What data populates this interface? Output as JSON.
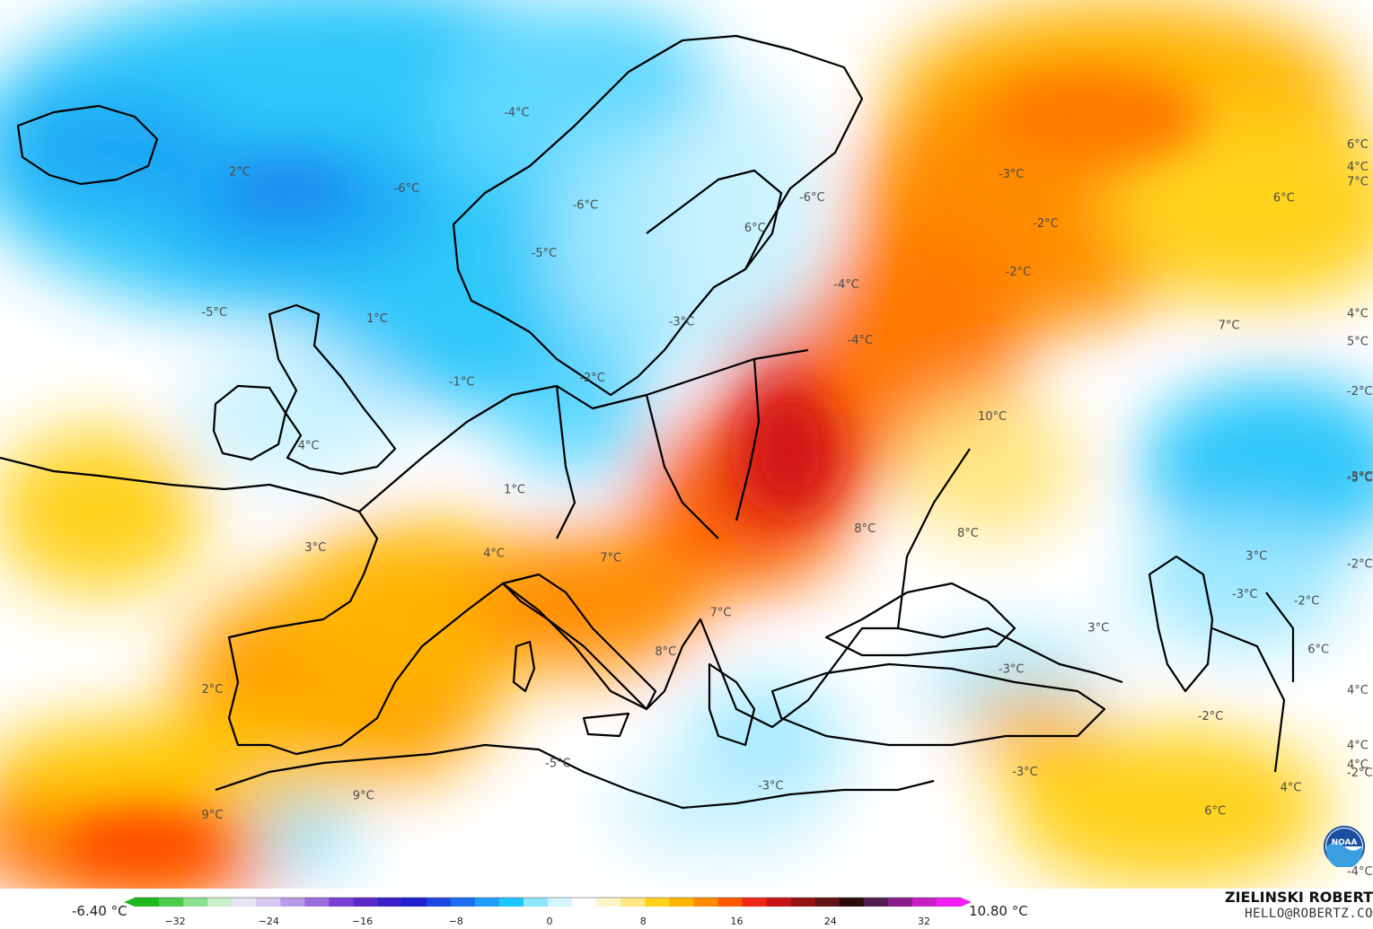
{
  "map": {
    "labels": [
      {
        "text": "-4°C",
        "lon": -13.0,
        "lat": 66.5
      },
      {
        "text": "2°C",
        "lon": -33.0,
        "lat": 63.8
      },
      {
        "text": "-6°C",
        "lon": -21.0,
        "lat": 62.0
      },
      {
        "text": "-6°C",
        "lon": -8.0,
        "lat": 60.5
      },
      {
        "text": "-6°C",
        "lon": 8.5,
        "lat": 61.0
      },
      {
        "text": "-3°C",
        "lon": 23.0,
        "lat": 63.0
      },
      {
        "text": "-2°C",
        "lon": 25.5,
        "lat": 60.0
      },
      {
        "text": "6°C",
        "lon": 4.5,
        "lat": 59.0
      },
      {
        "text": "-5°C",
        "lon": -11.0,
        "lat": 57.5
      },
      {
        "text": "-5°C",
        "lon": -35.0,
        "lat": 55.0
      },
      {
        "text": "1°C",
        "lon": -23.0,
        "lat": 53.8
      },
      {
        "text": "-4°C",
        "lon": 11.0,
        "lat": 55.5
      },
      {
        "text": "-2°C",
        "lon": 23.5,
        "lat": 56.8
      },
      {
        "text": "-3°C",
        "lon": -1.0,
        "lat": 53.0
      },
      {
        "text": "-4°C",
        "lon": 12.0,
        "lat": 52.0
      },
      {
        "text": "-1°C",
        "lon": -17.0,
        "lat": 49.5
      },
      {
        "text": "-2°C",
        "lon": -7.5,
        "lat": 49.5
      },
      {
        "text": "4°C",
        "lon": -28.0,
        "lat": 46.0
      },
      {
        "text": "10°C",
        "lon": 21.5,
        "lat": 47.5
      },
      {
        "text": "1°C",
        "lon": -13.0,
        "lat": 42.5
      },
      {
        "text": "3°C",
        "lon": -27.5,
        "lat": 39.5
      },
      {
        "text": "4°C",
        "lon": -14.5,
        "lat": 38.5
      },
      {
        "text": "7°C",
        "lon": -6.0,
        "lat": 38.0
      },
      {
        "text": "8°C",
        "lon": 12.5,
        "lat": 40.0
      },
      {
        "text": "8°C",
        "lon": 20.0,
        "lat": 40.0
      },
      {
        "text": "7°C",
        "lon": 2.0,
        "lat": 34.5
      },
      {
        "text": "8°C",
        "lon": -2.0,
        "lat": 32.0
      },
      {
        "text": "2°C",
        "lon": -35.0,
        "lat": 31.0
      },
      {
        "text": "-3°C",
        "lon": 23.0,
        "lat": 31.5
      },
      {
        "text": "3°C",
        "lon": 29.5,
        "lat": 34.5
      },
      {
        "text": "-2°C",
        "lon": 37.5,
        "lat": 29.5
      },
      {
        "text": "-3°C",
        "lon": 40.0,
        "lat": 37.5
      },
      {
        "text": "3°C",
        "lon": 41.0,
        "lat": 40.0
      },
      {
        "text": "-2°C",
        "lon": 44.5,
        "lat": 37.5
      },
      {
        "text": "6°C",
        "lon": 45.5,
        "lat": 34.5
      },
      {
        "text": "-3°C",
        "lon": 24.0,
        "lat": 25.0
      },
      {
        "text": "-5°C",
        "lon": -10.0,
        "lat": 25.0
      },
      {
        "text": "-3°C",
        "lon": 5.5,
        "lat": 23.5
      },
      {
        "text": "9°C",
        "lon": -35.0,
        "lat": 23.0
      },
      {
        "text": "9°C",
        "lon": -24.0,
        "lat": 23.5
      },
      {
        "text": "6°C",
        "lon": 38.0,
        "lat": 23.5
      },
      {
        "text": "4°C",
        "lon": 43.5,
        "lat": 25.5
      },
      {
        "text": "4°C",
        "lon": 53.0,
        "lat": 28.0
      },
      {
        "text": "-2°C",
        "lon": 57.0,
        "lat": 28.0
      },
      {
        "text": "4°C",
        "lon": 62.5,
        "lat": 34.0
      },
      {
        "text": "4°C",
        "lon": 59.0,
        "lat": 30.0
      },
      {
        "text": "-4°C",
        "lon": 67.0,
        "lat": 23.0
      },
      {
        "text": "-2°C",
        "lon": 69.0,
        "lat": 43.0
      },
      {
        "text": "-3°C",
        "lon": 58.0,
        "lat": 47.0
      },
      {
        "text": "-5°C",
        "lon": 69.0,
        "lat": 48.5
      },
      {
        "text": "-2°C",
        "lon": 69.0,
        "lat": 54.0
      },
      {
        "text": "7°C",
        "lon": 39.0,
        "lat": 54.5
      },
      {
        "text": "4°C",
        "lon": 66.0,
        "lat": 58.5
      },
      {
        "text": "5°C",
        "lon": 74.0,
        "lat": 58.0
      },
      {
        "text": "6°C",
        "lon": 43.0,
        "lat": 63.0
      },
      {
        "text": "7°C",
        "lon": 52.0,
        "lat": 65.0
      },
      {
        "text": "6°C",
        "lon": 57.0,
        "lat": 68.0
      },
      {
        "text": "4°C",
        "lon": 67.0,
        "lat": 68.0
      }
    ]
  },
  "legend": {
    "min_label": "-6.40 °C",
    "max_label": "10.80 °C",
    "ticks": [
      "−32",
      "−24",
      "−16",
      "−8",
      "0",
      "8",
      "16",
      "24",
      "32"
    ],
    "colors": [
      "#1fb81f",
      "#4ccc4c",
      "#8ee08e",
      "#c8f0c8",
      "#e6e6f5",
      "#d6c8f0",
      "#b89ae6",
      "#9a6ee0",
      "#7a40d6",
      "#5a28c8",
      "#3a20c8",
      "#2020d0",
      "#1e46e0",
      "#1e6ef0",
      "#1ea0fa",
      "#1ec8ff",
      "#8ee6ff",
      "#d2f5ff",
      "#ffffff",
      "#fff5c8",
      "#ffe682",
      "#ffd21e",
      "#ffb400",
      "#ff8c00",
      "#ff5a00",
      "#f02814",
      "#c81414",
      "#961414",
      "#641414",
      "#2a0a0a",
      "#501e50",
      "#8c1e8c",
      "#c81ec8",
      "#f01ef0"
    ],
    "brand_name": "ZIELINSKI ROBERT",
    "brand_email": "HELLO@ROBERTZ.CO",
    "badge_text": "NOAA"
  }
}
